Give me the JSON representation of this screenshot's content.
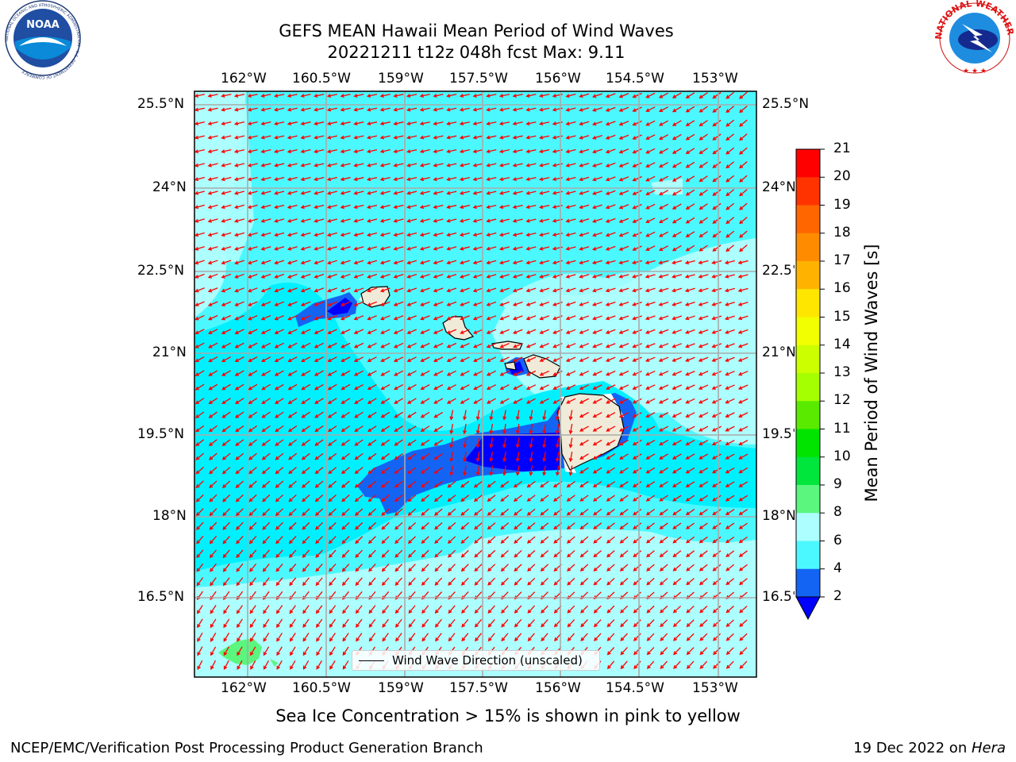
{
  "title": {
    "line1": "GEFS MEAN Hawaii Mean Period of Wind Waves",
    "line2": "20221211 t12z 048h fcst   Max: 9.11"
  },
  "logos": {
    "left": {
      "name": "noaa-logo",
      "text": "NOAA",
      "ring_text": "NATIONAL OCEANIC AND ATMOSPHERIC ADMINISTRATION · U.S. DEPARTMENT OF COMMERCE"
    },
    "right": {
      "name": "nws-logo",
      "ring_text": "NATIONAL WEATHER SERVICE"
    }
  },
  "map": {
    "lon_labels": [
      "162°W",
      "160.5°W",
      "159°W",
      "157.5°W",
      "156°W",
      "154.5°W",
      "153°W"
    ],
    "lat_labels_left": [
      "25.5°N",
      "24°N",
      "22.5°N",
      "21°N",
      "19.5°N",
      "18°N",
      "16.5°N"
    ],
    "lat_labels_right": [
      "25.5°N",
      "24°N",
      "22.5°N",
      "21°N",
      "19.5°N",
      "18°N",
      "16.5°N"
    ],
    "vector_color": "#ff0000",
    "land_color": "#efebd8",
    "legend_label": "Wind Wave Direction (unscaled)"
  },
  "colorbar": {
    "title": "Mean Period of Wind Waves [s]",
    "ticks": [
      "21",
      "20",
      "19",
      "18",
      "17",
      "16",
      "15",
      "14",
      "13",
      "12",
      "11",
      "10",
      "9",
      "8",
      "6",
      "4",
      "2"
    ],
    "colors": [
      "#ff0000",
      "#ff2c00",
      "#ff5900",
      "#ff7f00",
      "#ffa500",
      "#ffcc00",
      "#ffff00",
      "#e6ff00",
      "#ccff00",
      "#a4f200",
      "#5aea00",
      "#00e400",
      "#00e63c",
      "#5af67e",
      "#adfefe",
      "#4cf8ff",
      "#00f0ff",
      "#0095ff",
      "#1464f4"
    ],
    "extend_min_color": "#0000ff"
  },
  "notes": {
    "ice": "Sea Ice Concentration > 15% is shown in pink to yellow",
    "footer_left": "NCEP/EMC/Verification Post Processing Product Generation Branch",
    "footer_right_date": "19 Dec 2022 on ",
    "footer_right_host": "Hera"
  }
}
